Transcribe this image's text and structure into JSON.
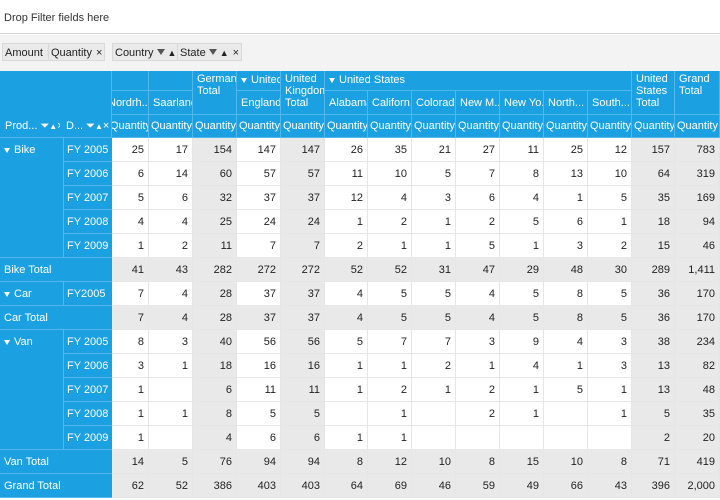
{
  "drop_filter_label": "Drop Filter fields here",
  "value_chips": [
    {
      "label": "Amount",
      "close": "×"
    },
    {
      "label": "Quantity",
      "close": "×"
    }
  ],
  "column_chips": [
    {
      "label": "Country",
      "close": "×"
    },
    {
      "label": "State",
      "close": "×"
    }
  ],
  "row_chips": [
    {
      "label": "Prod...",
      "close": "×"
    },
    {
      "label": "D...",
      "close": "×"
    }
  ],
  "sort_glyph": "▲",
  "columns": [
    {
      "state": "Nordrh...",
      "country": "",
      "measure": "Quantity"
    },
    {
      "state": "Saarland",
      "country": "",
      "measure": "Quantity"
    },
    {
      "state": "Germany Total",
      "country": "",
      "measure": "Quantity",
      "total": true
    },
    {
      "state": "England",
      "country": "United I",
      "measure": "Quantity"
    },
    {
      "state": "United Kingdom Total",
      "country": "",
      "measure": "Quantity",
      "total": true
    },
    {
      "state": "Alabama",
      "country": "United States",
      "measure": "Quantity"
    },
    {
      "state": "Californ...",
      "country": "",
      "measure": "Quantity"
    },
    {
      "state": "Colorado",
      "country": "",
      "measure": "Quantity"
    },
    {
      "state": "New M...",
      "country": "",
      "measure": "Quantity"
    },
    {
      "state": "New Yo...",
      "country": "",
      "measure": "Quantity"
    },
    {
      "state": "North...",
      "country": "",
      "measure": "Quantity"
    },
    {
      "state": "South...",
      "country": "",
      "measure": "Quantity"
    },
    {
      "state": "United States Total",
      "country": "",
      "measure": "Quantity",
      "total": true
    },
    {
      "state": "Grand Total",
      "country": "",
      "measure": "Quantity",
      "total": true
    }
  ],
  "rows": [
    {
      "product": "Bike",
      "date": "FY 2005",
      "values": [
        "25",
        "17",
        "154",
        "147",
        "147",
        "26",
        "35",
        "21",
        "27",
        "11",
        "25",
        "12",
        "157",
        "783"
      ]
    },
    {
      "product": "",
      "date": "FY 2006",
      "values": [
        "6",
        "14",
        "60",
        "57",
        "57",
        "11",
        "10",
        "5",
        "7",
        "8",
        "13",
        "10",
        "64",
        "319"
      ]
    },
    {
      "product": "",
      "date": "FY 2007",
      "values": [
        "5",
        "6",
        "32",
        "37",
        "37",
        "12",
        "4",
        "3",
        "6",
        "4",
        "1",
        "5",
        "35",
        "169"
      ]
    },
    {
      "product": "",
      "date": "FY 2008",
      "values": [
        "4",
        "4",
        "25",
        "24",
        "24",
        "1",
        "2",
        "1",
        "2",
        "5",
        "6",
        "1",
        "18",
        "94"
      ]
    },
    {
      "product": "",
      "date": "FY 2009",
      "values": [
        "1",
        "2",
        "11",
        "7",
        "7",
        "2",
        "1",
        "1",
        "5",
        "1",
        "3",
        "2",
        "15",
        "46"
      ]
    },
    {
      "product": "Bike Total",
      "date": "",
      "total": true,
      "values": [
        "41",
        "43",
        "282",
        "272",
        "272",
        "52",
        "52",
        "31",
        "47",
        "29",
        "48",
        "30",
        "289",
        "1,411"
      ]
    },
    {
      "product": "Car",
      "date": "FY2005",
      "values": [
        "7",
        "4",
        "28",
        "37",
        "37",
        "4",
        "5",
        "5",
        "4",
        "5",
        "8",
        "5",
        "36",
        "170"
      ]
    },
    {
      "product": "Car Total",
      "date": "",
      "total": true,
      "values": [
        "7",
        "4",
        "28",
        "37",
        "37",
        "4",
        "5",
        "5",
        "4",
        "5",
        "8",
        "5",
        "36",
        "170"
      ]
    },
    {
      "product": "Van",
      "date": "FY 2005",
      "values": [
        "8",
        "3",
        "40",
        "56",
        "56",
        "5",
        "7",
        "7",
        "3",
        "9",
        "4",
        "3",
        "38",
        "234"
      ]
    },
    {
      "product": "",
      "date": "FY 2006",
      "values": [
        "3",
        "1",
        "18",
        "16",
        "16",
        "1",
        "1",
        "2",
        "1",
        "4",
        "1",
        "3",
        "13",
        "82"
      ]
    },
    {
      "product": "",
      "date": "FY 2007",
      "values": [
        "1",
        "",
        "6",
        "11",
        "11",
        "1",
        "2",
        "1",
        "2",
        "1",
        "5",
        "1",
        "13",
        "48"
      ]
    },
    {
      "product": "",
      "date": "FY 2008",
      "values": [
        "1",
        "1",
        "8",
        "5",
        "5",
        "",
        "1",
        "",
        "2",
        "1",
        "",
        "1",
        "5",
        "35"
      ]
    },
    {
      "product": "",
      "date": "FY 2009",
      "values": [
        "1",
        "",
        "4",
        "6",
        "6",
        "1",
        "1",
        "",
        "",
        "",
        "",
        "",
        "2",
        "20"
      ]
    },
    {
      "product": "Van Total",
      "date": "",
      "total": true,
      "values": [
        "14",
        "5",
        "76",
        "94",
        "94",
        "8",
        "12",
        "10",
        "8",
        "15",
        "10",
        "8",
        "71",
        "419"
      ]
    },
    {
      "product": "Grand Total",
      "date": "",
      "total": true,
      "values": [
        "62",
        "52",
        "386",
        "403",
        "403",
        "64",
        "69",
        "46",
        "59",
        "49",
        "66",
        "43",
        "396",
        "2,000"
      ]
    }
  ],
  "colors": {
    "header_blue": "#1ba1e2",
    "total_gray": "#e9e9e9"
  }
}
